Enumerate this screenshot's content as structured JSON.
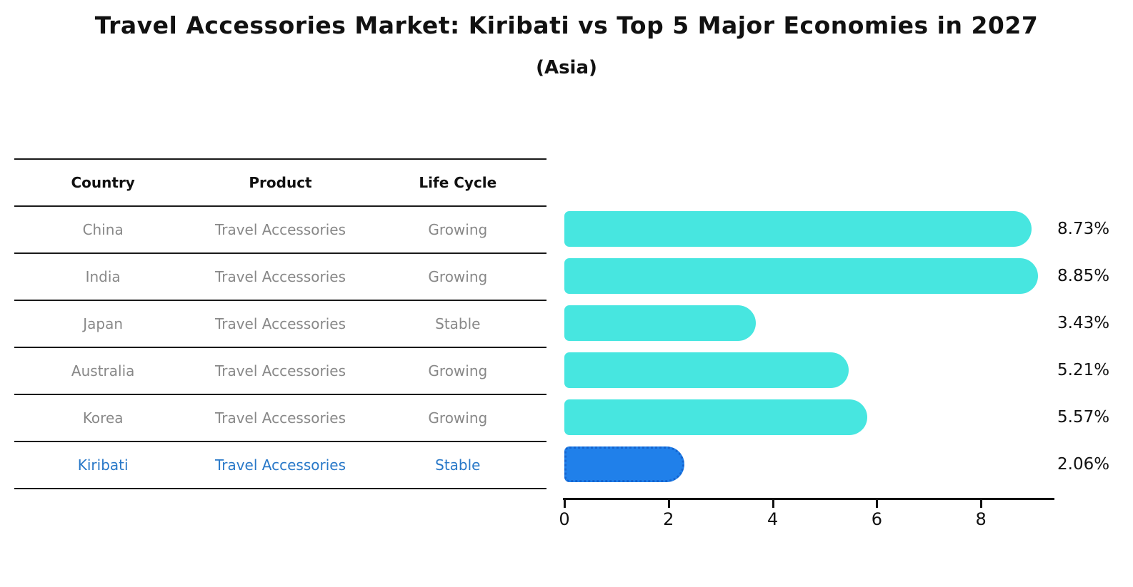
{
  "title": "Travel Accessories Market: Kiribati vs Top 5 Major Economies in 2027",
  "subtitle": "(Asia)",
  "colors": {
    "bar_default": "#47E6E0",
    "bar_highlight": "#2080EA",
    "bar_highlight_border": "#1565D0",
    "highlight_text": "#2878C8",
    "row_text": "#888888",
    "header_text": "#111111",
    "axis": "#111111"
  },
  "table": {
    "columns": [
      "Country",
      "Product",
      "Life Cycle"
    ],
    "rows": [
      {
        "country": "China",
        "product": "Travel Accessories",
        "life_cycle": "Growing",
        "highlight": false
      },
      {
        "country": "India",
        "product": "Travel Accessories",
        "life_cycle": "Growing",
        "highlight": false
      },
      {
        "country": "Japan",
        "product": "Travel Accessories",
        "life_cycle": "Stable",
        "highlight": false
      },
      {
        "country": "Australia",
        "product": "Travel Accessories",
        "life_cycle": "Growing",
        "highlight": false
      },
      {
        "country": "Korea",
        "product": "Travel Accessories",
        "life_cycle": "Growing",
        "highlight": false
      },
      {
        "country": "Kiribati",
        "product": "Travel Accessories",
        "life_cycle": "Stable",
        "highlight": true
      }
    ]
  },
  "chart_data": {
    "type": "bar",
    "orientation": "horizontal",
    "title": "Travel Accessories Market: Kiribati vs Top 5 Major Economies in 2027",
    "subtitle": "(Asia)",
    "categories": [
      "China",
      "India",
      "Japan",
      "Australia",
      "Korea",
      "Kiribati"
    ],
    "values": [
      8.73,
      8.85,
      3.43,
      5.21,
      5.57,
      2.06
    ],
    "value_labels": [
      "8.73%",
      "8.85%",
      "3.43%",
      "5.21%",
      "5.57%",
      "2.06%"
    ],
    "life_cycle": [
      "Growing",
      "Growing",
      "Stable",
      "Growing",
      "Growing",
      "Stable"
    ],
    "highlight_index": 5,
    "xlim": [
      0,
      9.4
    ],
    "x_ticks": [
      0,
      2,
      4,
      6,
      8
    ],
    "grid": false,
    "legend": "none"
  }
}
